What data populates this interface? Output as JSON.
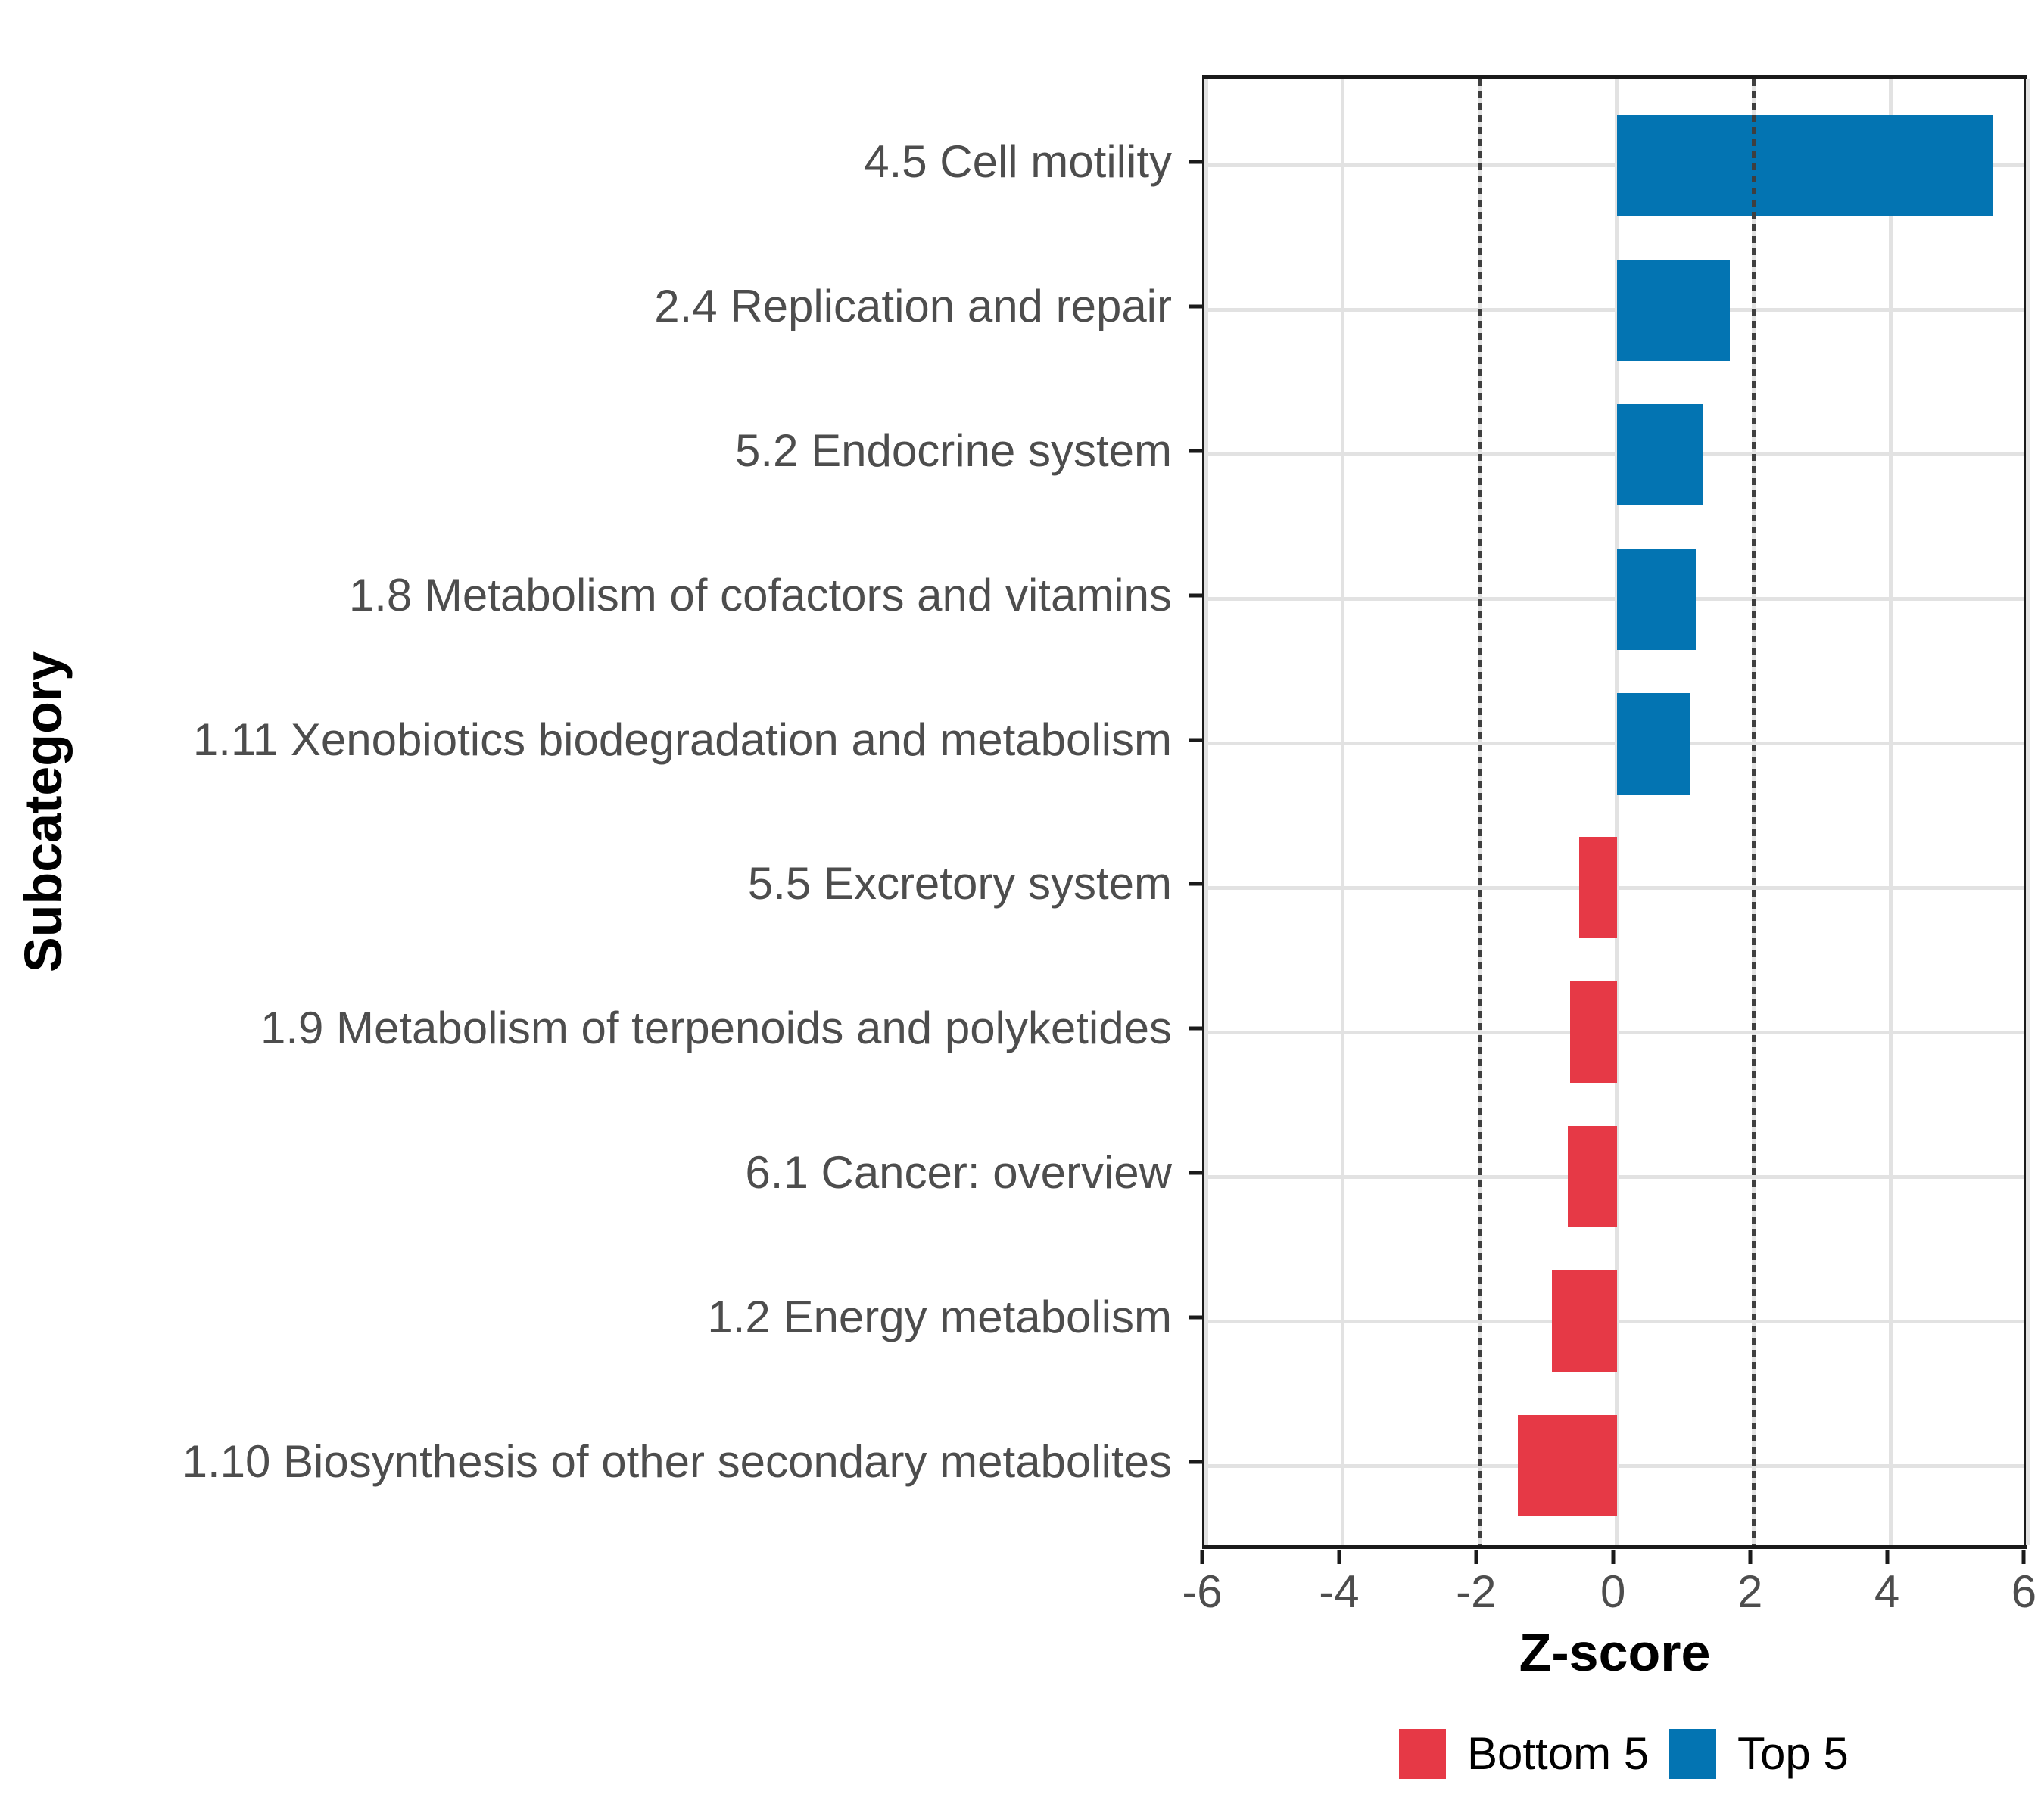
{
  "chart_data": {
    "type": "bar",
    "orientation": "horizontal",
    "title": "",
    "xlabel": "Z-score",
    "ylabel": "Subcategory",
    "xlim": [
      -6,
      6.05
    ],
    "xticks": [
      -6,
      -4,
      -2,
      0,
      2,
      4,
      6
    ],
    "xtick_labels": [
      "-6",
      "-4",
      "-2",
      "0",
      "2",
      "4",
      "6"
    ],
    "reference_lines": [
      -2,
      2
    ],
    "grid": "on",
    "legend_position": "bottom",
    "categories": [
      "4.5 Cell motility",
      "2.4 Replication and repair",
      "5.2 Endocrine system",
      "1.8 Metabolism of cofactors and vitamins",
      "1.11 Xenobiotics biodegradation and metabolism",
      "5.5 Excretory system",
      "1.9 Metabolism of terpenoids and polyketides",
      "6.1 Cancer: overview",
      "1.2 Energy metabolism",
      "1.10 Biosynthesis of other secondary metabolites"
    ],
    "values": [
      5.5,
      1.65,
      1.25,
      1.15,
      1.08,
      -0.55,
      -0.68,
      -0.72,
      -0.95,
      -1.45
    ],
    "groups": [
      "Top 5",
      "Top 5",
      "Top 5",
      "Top 5",
      "Top 5",
      "Bottom 5",
      "Bottom 5",
      "Bottom 5",
      "Bottom 5",
      "Bottom 5"
    ],
    "legend": [
      {
        "label": "Bottom 5",
        "color": "#E63946"
      },
      {
        "label": "Top 5",
        "color": "#0374B2"
      }
    ],
    "colors": {
      "grid": "#e2e2e2",
      "panel_border": "#1a1a1a",
      "axis_text": "#4d4d4d",
      "reference_line": "#3f3f3f"
    }
  }
}
